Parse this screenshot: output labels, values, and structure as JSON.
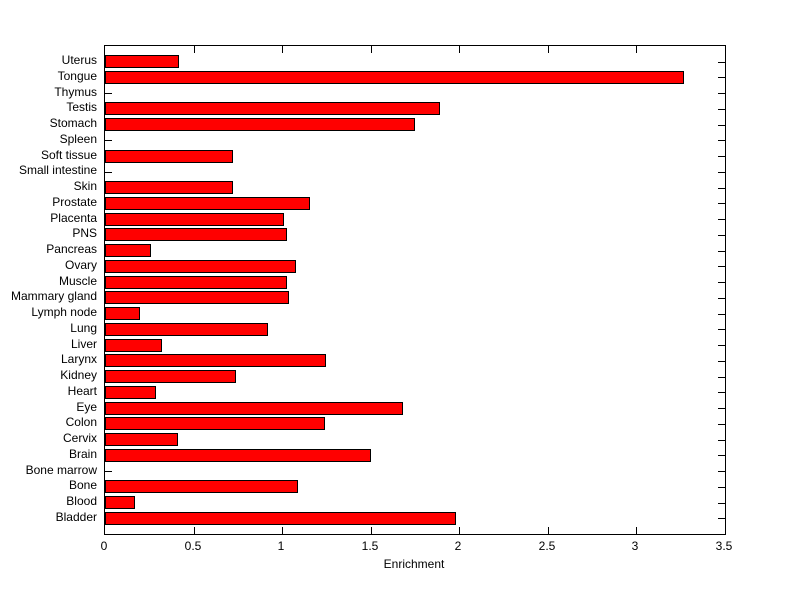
{
  "chart_data": {
    "type": "bar",
    "orientation": "horizontal",
    "title": "",
    "xlabel": "Enrichment",
    "ylabel": "",
    "xlim": [
      0,
      3.5
    ],
    "grid": false,
    "legend": "none",
    "x_ticks": [
      {
        "label": "0",
        "value": 0
      },
      {
        "label": "0.5",
        "value": 0.5
      },
      {
        "label": "1",
        "value": 1
      },
      {
        "label": "1.5",
        "value": 1.5
      },
      {
        "label": "2",
        "value": 2
      },
      {
        "label": "2.5",
        "value": 2.5
      },
      {
        "label": "3",
        "value": 3
      },
      {
        "label": "3.5",
        "value": 3.5
      }
    ],
    "categories": [
      "Uterus",
      "Tongue",
      "Thymus",
      "Testis",
      "Stomach",
      "Spleen",
      "Soft tissue",
      "Small intestine",
      "Skin",
      "Prostate",
      "Placenta",
      "PNS",
      "Pancreas",
      "Ovary",
      "Muscle",
      "Mammary gland",
      "Lymph node",
      "Lung",
      "Liver",
      "Larynx",
      "Kidney",
      "Heart",
      "Eye",
      "Colon",
      "Cervix",
      "Brain",
      "Bone marrow",
      "Bone",
      "Blood",
      "Bladder"
    ],
    "values": [
      0.42,
      3.27,
      0,
      1.89,
      1.75,
      0,
      0.72,
      0,
      0.72,
      1.16,
      1.01,
      1.03,
      0.26,
      1.08,
      1.03,
      1.04,
      0.2,
      0.92,
      0.32,
      1.25,
      0.74,
      0.29,
      1.68,
      1.24,
      0.41,
      1.5,
      0,
      1.09,
      0.17,
      1.98
    ],
    "colors": {
      "bar_fill": "#ff0000",
      "bar_edge": "#000000",
      "axis": "#000000",
      "text": "#000000",
      "background": "#ffffff"
    }
  }
}
